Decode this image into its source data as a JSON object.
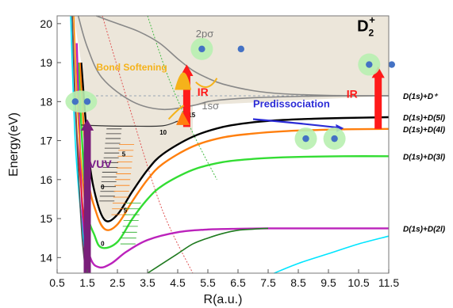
{
  "chart_data": {
    "type": "line",
    "xlabel": "R(a.u.)",
    "ylabel": "Energy(eV)",
    "xlim": [
      0.5,
      11.5
    ],
    "ylim": [
      13.6,
      20.2
    ],
    "x_ticks": [
      "0.5",
      "1.5",
      "2.5",
      "3.5",
      "4.5",
      "5.5",
      "6.5",
      "7.5",
      "8.5",
      "9.5",
      "10.5",
      "11.5"
    ],
    "y_ticks": [
      "14",
      "15",
      "16",
      "17",
      "18",
      "19",
      "20"
    ],
    "title_parts": {
      "base": "D",
      "sub": "2",
      "sup": "+"
    },
    "curve_labels": [
      "2pσ",
      "1sσ"
    ],
    "right_labels": [
      {
        "text": "D(1s)+D⁺",
        "y": 18.15
      },
      {
        "text": "D(1s)+D(5l)",
        "y": 17.6
      },
      {
        "text": "D(1s)+D(4l)",
        "y": 17.3
      },
      {
        "text": "D(1s)+D(3l)",
        "y": 16.6
      },
      {
        "text": "D(1s)+D(2l)",
        "y": 14.75
      }
    ],
    "annotations": [
      "Bond Softening",
      "IR",
      "IR",
      "Predissociation",
      "VUV"
    ],
    "vib_labels": [
      {
        "text": "0",
        "x": 1.95,
        "y": 15.75
      },
      {
        "text": "5",
        "x": 2.65,
        "y": 16.6
      },
      {
        "text": "10",
        "x": 3.9,
        "y": 17.15
      },
      {
        "text": "15",
        "x": 4.85,
        "y": 17.6
      },
      {
        "text": "5",
        "x": 2.7,
        "y": 15.15
      },
      {
        "text": "0",
        "x": 1.95,
        "y": 14.3
      }
    ],
    "series": [
      {
        "color": "#888888",
        "x": [
          1.8,
          2.5,
          3.2,
          3.9,
          4.5,
          5.0,
          5.5,
          6.0,
          7.0,
          8.0,
          9.5,
          11.5
        ],
        "y": [
          20.2,
          20.0,
          19.8,
          19.5,
          19.1,
          18.8,
          18.6,
          18.45,
          18.28,
          18.2,
          18.16,
          18.15
        ]
      },
      {
        "color": "#888888",
        "x": [
          1.2,
          1.5,
          2.0,
          3.0,
          4.0,
          5.0,
          5.5,
          6.0,
          7.0,
          9.0,
          11.5
        ],
        "y": [
          20.2,
          19.4,
          18.6,
          18.0,
          17.8,
          17.9,
          18.0,
          18.05,
          18.1,
          18.14,
          18.15
        ]
      },
      {
        "color": "#000000",
        "x": [
          1.3,
          1.55,
          1.8,
          2.1,
          2.5,
          3.0,
          3.5,
          4.0,
          5.0,
          6.0,
          7.0,
          8.0,
          9.0,
          10.0,
          11.5
        ],
        "y": [
          19.0,
          16.6,
          15.5,
          14.95,
          15.1,
          15.7,
          16.25,
          16.65,
          17.1,
          17.35,
          17.47,
          17.53,
          17.56,
          17.58,
          17.6
        ]
      },
      {
        "color": "#ff7f0e",
        "x": [
          1.25,
          1.5,
          1.8,
          2.1,
          2.5,
          3.0,
          3.5,
          4.0,
          5.0,
          6.0,
          7.0,
          8.0,
          9.0,
          10.0,
          11.5
        ],
        "y": [
          19.0,
          16.2,
          15.15,
          14.72,
          14.85,
          15.45,
          16.0,
          16.4,
          16.85,
          17.08,
          17.18,
          17.24,
          17.27,
          17.29,
          17.3
        ]
      },
      {
        "color": "#33dd33",
        "x": [
          1.2,
          1.45,
          1.75,
          2.0,
          2.5,
          3.0,
          3.5,
          4.0,
          5.0,
          6.0,
          7.0,
          8.0,
          9.0,
          10.0,
          11.5
        ],
        "y": [
          19.0,
          15.5,
          14.55,
          14.25,
          14.4,
          15.0,
          15.5,
          15.85,
          16.25,
          16.45,
          16.53,
          16.57,
          16.59,
          16.6,
          16.6
        ]
      },
      {
        "color": "#bb22bb",
        "x": [
          1.15,
          1.35,
          1.6,
          1.9,
          2.3,
          2.8,
          3.5,
          4.5,
          5.5,
          6.5,
          7.5,
          9.0,
          11.5
        ],
        "y": [
          19.5,
          15.0,
          14.0,
          13.75,
          13.85,
          14.15,
          14.45,
          14.65,
          14.72,
          14.74,
          14.75,
          14.75,
          14.75
        ]
      },
      {
        "color": "#1f7a1f",
        "x": [
          3.5,
          4.0,
          4.5,
          5.0,
          5.5,
          6.0,
          6.5,
          7.0,
          7.5
        ],
        "y": [
          13.6,
          13.85,
          14.1,
          14.35,
          14.5,
          14.62,
          14.7,
          14.73,
          14.75
        ]
      },
      {
        "color": "#00e5ff",
        "x": [
          7.7,
          8.5,
          9.5,
          10.5,
          11.5
        ],
        "y": [
          13.6,
          13.85,
          14.1,
          14.35,
          14.55
        ]
      },
      {
        "color": "#00e5ff",
        "x": [
          0.95,
          1.1,
          1.3,
          1.5
        ],
        "y": [
          20.2,
          17.0,
          15.0,
          13.6
        ]
      },
      {
        "color": "#ff8c00",
        "x": [
          1.05,
          1.2,
          1.4,
          1.6
        ],
        "y": [
          20.2,
          17.5,
          15.5,
          13.6
        ]
      },
      {
        "color": "#ee2222",
        "x": [
          1.0,
          1.15,
          1.35,
          1.55
        ],
        "y": [
          20.2,
          17.3,
          15.3,
          13.6
        ]
      },
      {
        "color": "#555555",
        "x": [
          1.0,
          1.08,
          1.2,
          1.32,
          1.45
        ],
        "y": [
          20.2,
          18.3,
          16.3,
          14.6,
          13.6
        ]
      }
    ],
    "grid": false
  }
}
